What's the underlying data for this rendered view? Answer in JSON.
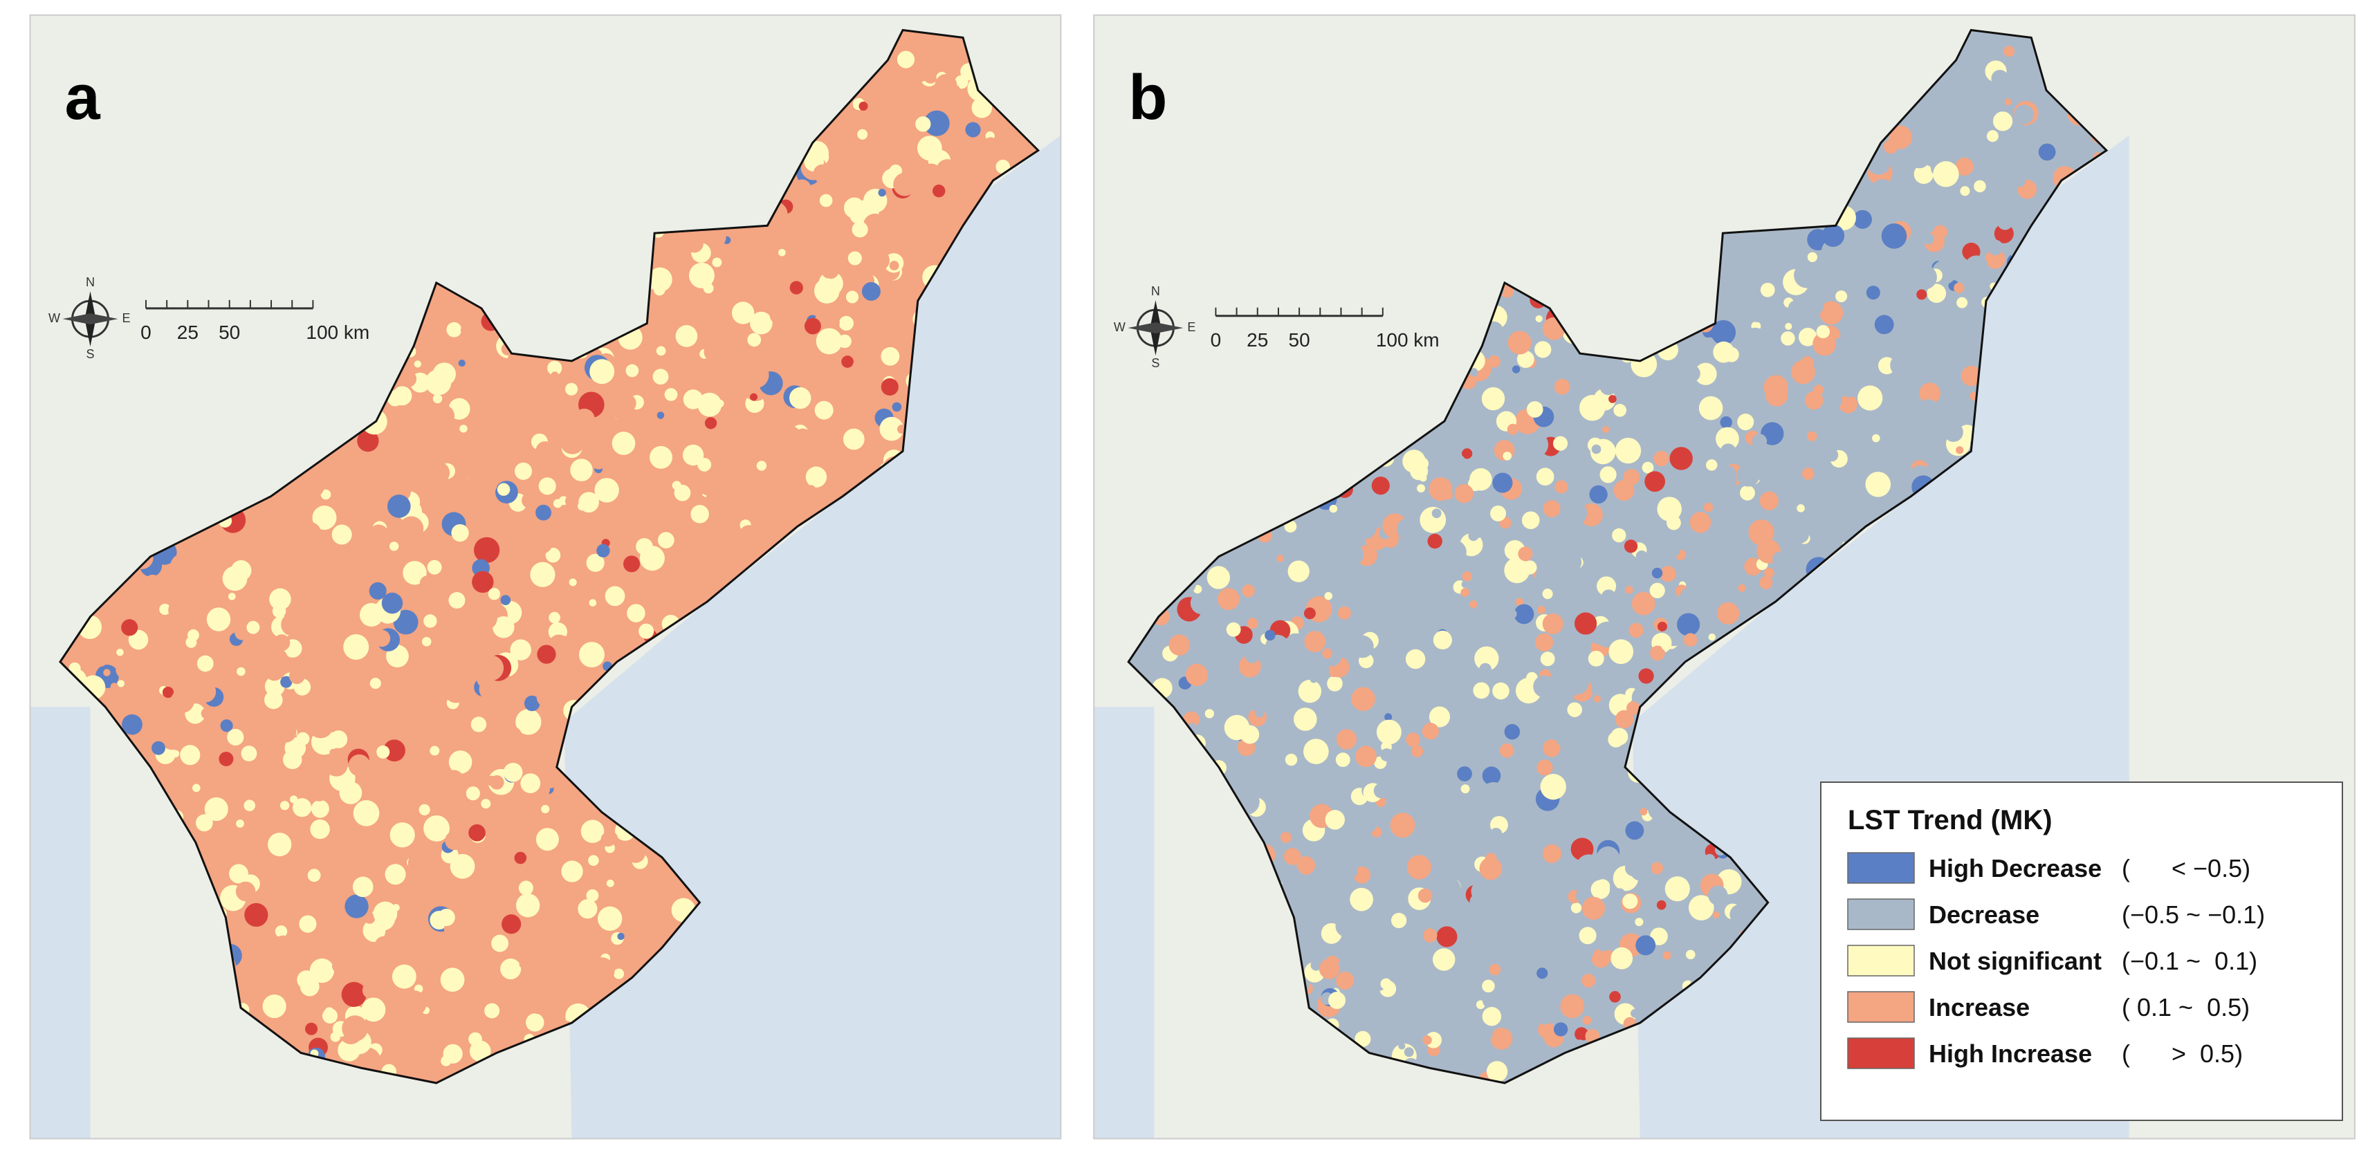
{
  "panels": [
    {
      "label": "a",
      "compass": {
        "n": "N",
        "e": "E",
        "s": "S",
        "w": "W"
      },
      "scale_bar": [
        "0",
        "25",
        "50",
        "100 km"
      ]
    },
    {
      "label": "b",
      "compass": {
        "n": "N",
        "e": "E",
        "s": "S",
        "w": "W"
      },
      "scale_bar": [
        "0",
        "25",
        "50",
        "100 km"
      ]
    }
  ],
  "legend": {
    "title": "LST Trend (MK)",
    "items": [
      {
        "label": "High Decrease",
        "range": "(      < −0.5)",
        "color": "#5b7fc4"
      },
      {
        "label": "Decrease",
        "range": "(−0.5 ~ −0.1)",
        "color": "#a9b8c8"
      },
      {
        "label": "Not significant",
        "range": "(−0.1 ~  0.1)",
        "color": "#fffac0"
      },
      {
        "label": "Increase",
        "range": "( 0.1 ~  0.5)",
        "color": "#f4a582"
      },
      {
        "label": "High Increase",
        "range": "(      >  0.5)",
        "color": "#d7403a"
      }
    ]
  }
}
